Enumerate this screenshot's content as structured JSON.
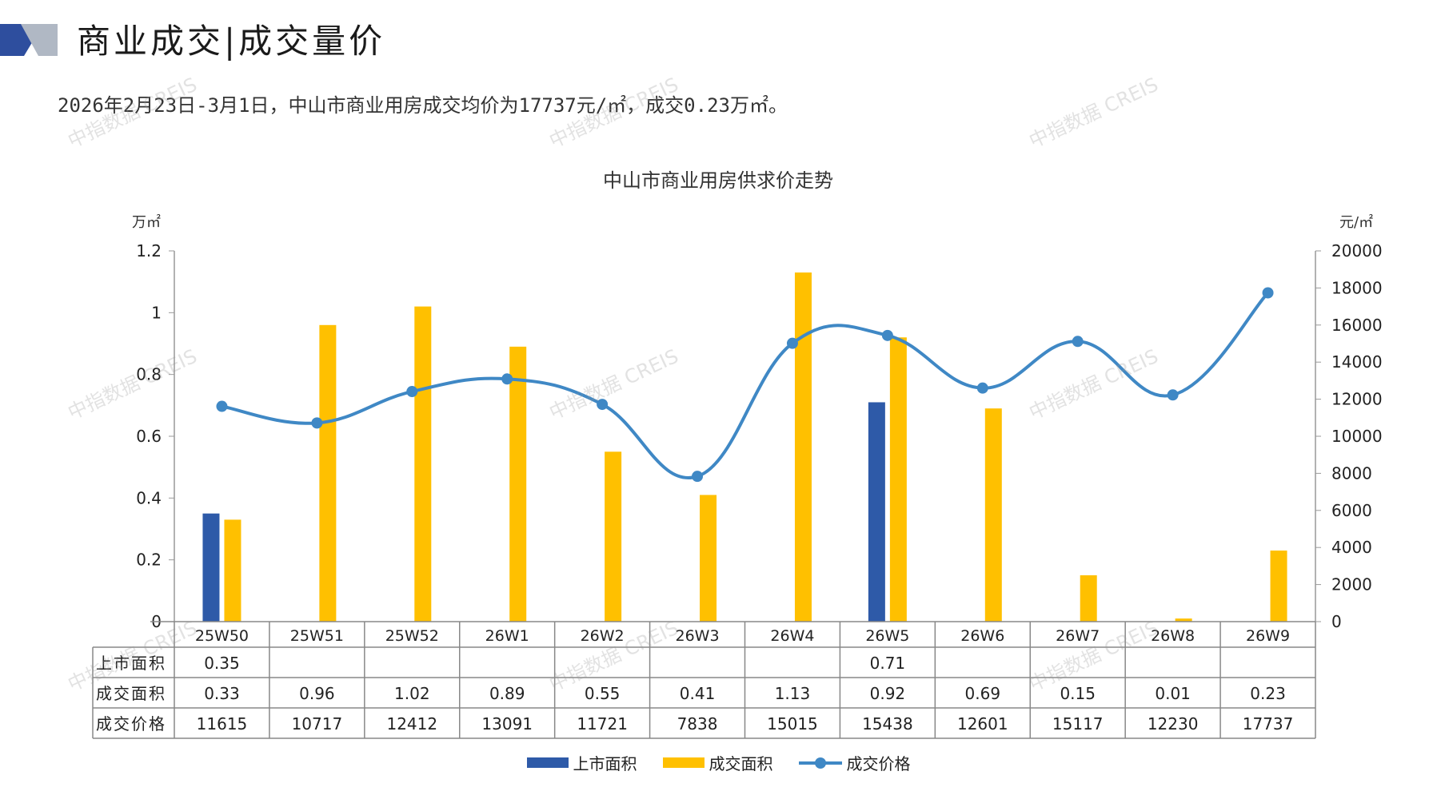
{
  "header": {
    "title": "商业成交|成交量价",
    "summary": "2026年2月23日-3月1日，中山市商业用房成交均价为17737元/㎡，成交0.23万㎡。"
  },
  "watermark_text": "中指数据 CREIS",
  "colors": {
    "supply": "#2E5AA8",
    "deal": "#FFC000",
    "price": "#3F88C5",
    "logo_dark": "#2E4E9E",
    "logo_light": "#B0B8C4"
  },
  "chart_data": {
    "type": "bar",
    "title": "中山市商业用房供求价走势",
    "left_unit": "万㎡",
    "right_unit": "元/㎡",
    "categories": [
      "25W50",
      "25W51",
      "25W52",
      "26W1",
      "26W2",
      "26W3",
      "26W4",
      "26W5",
      "26W6",
      "26W7",
      "26W8",
      "26W9"
    ],
    "left_ticks": [
      "0",
      "0.2",
      "0.4",
      "0.6",
      "0.8",
      "1",
      "1.2"
    ],
    "right_ticks": [
      "0",
      "2000",
      "4000",
      "6000",
      "8000",
      "10000",
      "12000",
      "14000",
      "16000",
      "18000",
      "20000"
    ],
    "ylim_left": [
      0,
      1.2
    ],
    "ylim_right": [
      0,
      20000
    ],
    "series": [
      {
        "name": "上市面积",
        "type": "bar",
        "axis": "left",
        "values": [
          0.35,
          null,
          null,
          null,
          null,
          null,
          null,
          0.71,
          null,
          null,
          null,
          null
        ],
        "labels": [
          "0.35",
          "",
          "",
          "",
          "",
          "",
          "",
          "0.71",
          "",
          "",
          "",
          ""
        ]
      },
      {
        "name": "成交面积",
        "type": "bar",
        "axis": "left",
        "values": [
          0.33,
          0.96,
          1.02,
          0.89,
          0.55,
          0.41,
          1.13,
          0.92,
          0.69,
          0.15,
          0.01,
          0.23
        ],
        "labels": [
          "0.33",
          "0.96",
          "1.02",
          "0.89",
          "0.55",
          "0.41",
          "1.13",
          "0.92",
          "0.69",
          "0.15",
          "0.01",
          "0.23"
        ]
      },
      {
        "name": "成交价格",
        "type": "line",
        "axis": "right",
        "values": [
          11615,
          10717,
          12412,
          13091,
          11721,
          7838,
          15015,
          15438,
          12601,
          15117,
          12230,
          17737
        ],
        "labels": [
          "11615",
          "10717",
          "12412",
          "13091",
          "11721",
          "7838",
          "15015",
          "15438",
          "12601",
          "15117",
          "12230",
          "17737"
        ]
      }
    ]
  }
}
